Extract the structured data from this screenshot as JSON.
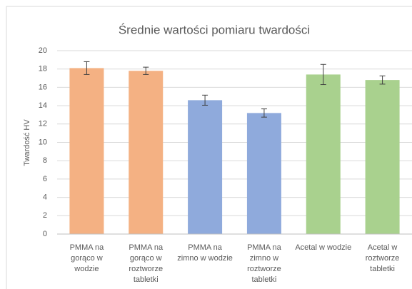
{
  "chart_data": {
    "type": "bar",
    "title": "Średnie wartości pomiaru twardości",
    "y_label": "Twardość HV",
    "categories": [
      "PMMA na gorąco w wodzie",
      "PMMA na gorąco w roztworze tabletki",
      "PMMA na zimno w wodzie",
      "PMMA na zimno w roztworze tabletki",
      "Acetal w wodzie",
      "Acetal w roztworze tabletki"
    ],
    "values": [
      18.1,
      17.8,
      14.6,
      13.2,
      17.4,
      16.8
    ],
    "errors": [
      0.7,
      0.4,
      0.55,
      0.45,
      1.1,
      0.45
    ],
    "colors": [
      "#f4b183",
      "#f4b183",
      "#8faadc",
      "#8faadc",
      "#a9d18e",
      "#a9d18e"
    ],
    "ylim": [
      0,
      20
    ],
    "yticks": [
      0,
      2,
      4,
      6,
      8,
      10,
      12,
      14,
      16,
      18,
      20
    ],
    "grid": true
  }
}
